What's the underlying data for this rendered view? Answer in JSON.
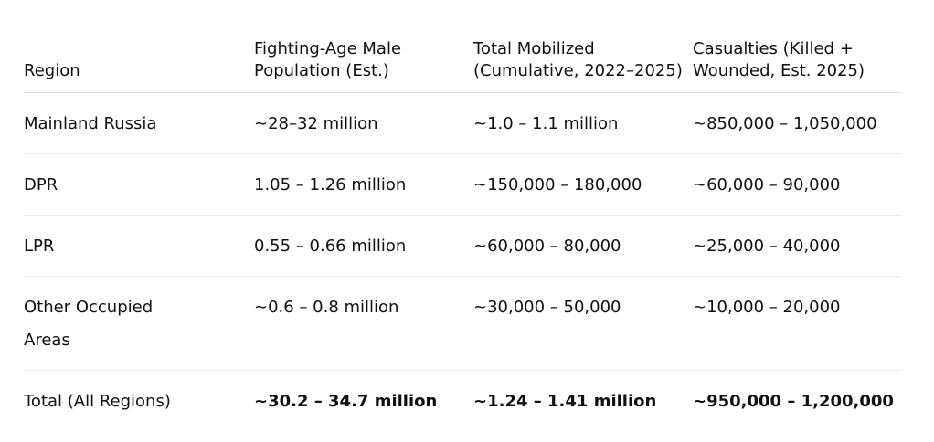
{
  "table": {
    "headers": [
      "Region",
      "Fighting-Age Male Population (Est.)",
      "Total Mobilized (Cumulative, 2022–2025)",
      "Casualties (Killed + Wounded, Est. 2025)"
    ],
    "rows": [
      [
        "Mainland Russia",
        "~28–32 million",
        "~1.0 – 1.1 million",
        "~850,000 – 1,050,000"
      ],
      [
        "DPR",
        "1.05 – 1.26 million",
        "~150,000 – 180,000",
        "~60,000 – 90,000"
      ],
      [
        "LPR",
        "0.55 – 0.66 million",
        "~60,000 – 80,000",
        "~25,000 – 40,000"
      ],
      [
        "Other Occupied Areas",
        "~0.6 – 0.8 million",
        "~30,000 – 50,000",
        "~10,000 – 20,000"
      ]
    ],
    "total": [
      "Total (All Regions)",
      "~30.2 – 34.7 million",
      "~1.24 – 1.41 million",
      "~950,000 – 1,200,000"
    ]
  }
}
